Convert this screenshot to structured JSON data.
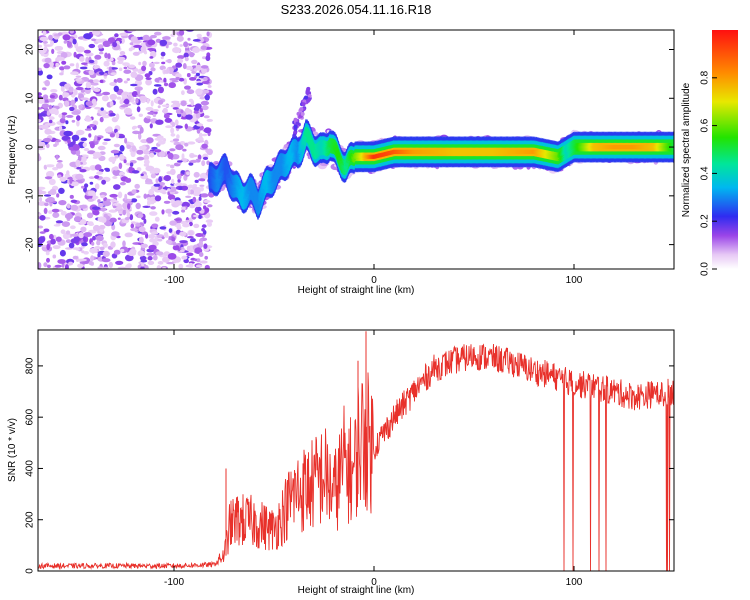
{
  "title": "S233.2026.054.11.16.R18",
  "charts": [
    {
      "type": "heatmap",
      "xlabel": "Height of straight line (km)",
      "ylabel": "Frequency (Hz)",
      "xlim": [
        -168,
        150
      ],
      "ylim": [
        -25,
        24
      ],
      "xticks": [
        -100,
        0,
        100
      ],
      "yticks": [
        -20,
        -10,
        0,
        10,
        20
      ],
      "colorbar": {
        "label": "Normalized spectral amplitude",
        "range": [
          0,
          1
        ],
        "ticks": [
          0.0,
          0.2,
          0.4,
          0.6,
          0.8
        ],
        "tick_labels": [
          "0.0",
          "0.2",
          "0.4",
          "0.6",
          "0.8"
        ]
      },
      "noise_region_x": [
        -168,
        -82
      ],
      "ridge": {
        "x": [
          -82,
          -78,
          -74,
          -70,
          -66,
          -62,
          -58,
          -54,
          -50,
          -46,
          -42,
          -38,
          -34,
          -30,
          -26,
          -22,
          -18,
          -14,
          -10,
          -6,
          0,
          10,
          20,
          40,
          60,
          80,
          92,
          96,
          100,
          110,
          120,
          130,
          140,
          150
        ],
        "freq": [
          -7,
          -6,
          -5,
          -8,
          -10,
          -9,
          -11,
          -8,
          -6,
          -4,
          -2,
          -1,
          2,
          0,
          -1,
          1,
          -2,
          -4,
          -2,
          -2,
          -2,
          -1,
          -1,
          -1,
          -1,
          -1,
          -2,
          -1,
          0,
          0,
          0,
          0,
          0,
          0
        ],
        "amp": [
          0.25,
          0.3,
          0.25,
          0.3,
          0.35,
          0.3,
          0.3,
          0.35,
          0.3,
          0.3,
          0.35,
          0.3,
          0.45,
          0.45,
          0.4,
          0.5,
          0.55,
          0.45,
          0.6,
          0.7,
          0.95,
          0.9,
          0.8,
          0.75,
          0.75,
          0.8,
          0.6,
          0.4,
          0.5,
          0.75,
          0.8,
          0.8,
          0.75,
          0.5
        ]
      }
    },
    {
      "type": "line",
      "xlabel": "Height of straight line (km)",
      "ylabel": "SNR (10 * v/v)",
      "xlim": [
        -168,
        150
      ],
      "ylim": [
        0,
        940
      ],
      "xticks": [
        -100,
        0,
        100
      ],
      "yticks": [
        0,
        200,
        400,
        600,
        800
      ],
      "color": "#e8312b",
      "envelope": {
        "x": [
          -168,
          -100,
          -80,
          -75,
          -72,
          -68,
          -60,
          -50,
          -40,
          -30,
          -25,
          -20,
          -15,
          -10,
          -8,
          -5,
          0,
          10,
          20,
          30,
          40,
          50,
          60,
          70,
          80,
          90,
          100,
          110,
          120,
          130,
          140,
          150
        ],
        "y": [
          20,
          20,
          25,
          60,
          180,
          200,
          190,
          160,
          300,
          340,
          380,
          300,
          420,
          380,
          500,
          520,
          480,
          600,
          700,
          790,
          820,
          840,
          830,
          810,
          780,
          760,
          730,
          720,
          700,
          680,
          690,
          700
        ]
      },
      "spikes": [
        {
          "x": -4,
          "y": 935
        },
        {
          "x": -74,
          "y": 400
        },
        {
          "x": -8,
          "y": 820
        }
      ]
    }
  ]
}
